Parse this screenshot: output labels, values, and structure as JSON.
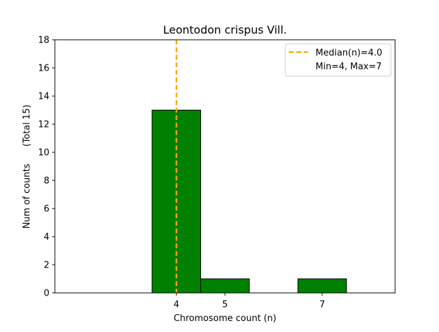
{
  "chart_data": {
    "type": "bar",
    "title": "Leontodon crispus Vill.",
    "xlabel": "Chromosome count (n)",
    "ylabel": "Num of counts      (Total 15)",
    "xlim": [
      1.5,
      8.5
    ],
    "ylim": [
      0,
      18
    ],
    "x_ticks": [
      4,
      5,
      7
    ],
    "y_ticks": [
      0,
      2,
      4,
      6,
      8,
      10,
      12,
      14,
      16,
      18
    ],
    "bars": [
      {
        "x": 4,
        "value": 13
      },
      {
        "x": 5,
        "value": 1
      },
      {
        "x": 7,
        "value": 1
      }
    ],
    "bar_color": "#008000",
    "bar_edge_color": "#000000",
    "median": 4.0,
    "median_color": "#ffa500",
    "legend": {
      "position": "top-right",
      "entries": [
        "Median(n)=4.0",
        "Min=4, Max=7"
      ]
    },
    "grid": false
  }
}
